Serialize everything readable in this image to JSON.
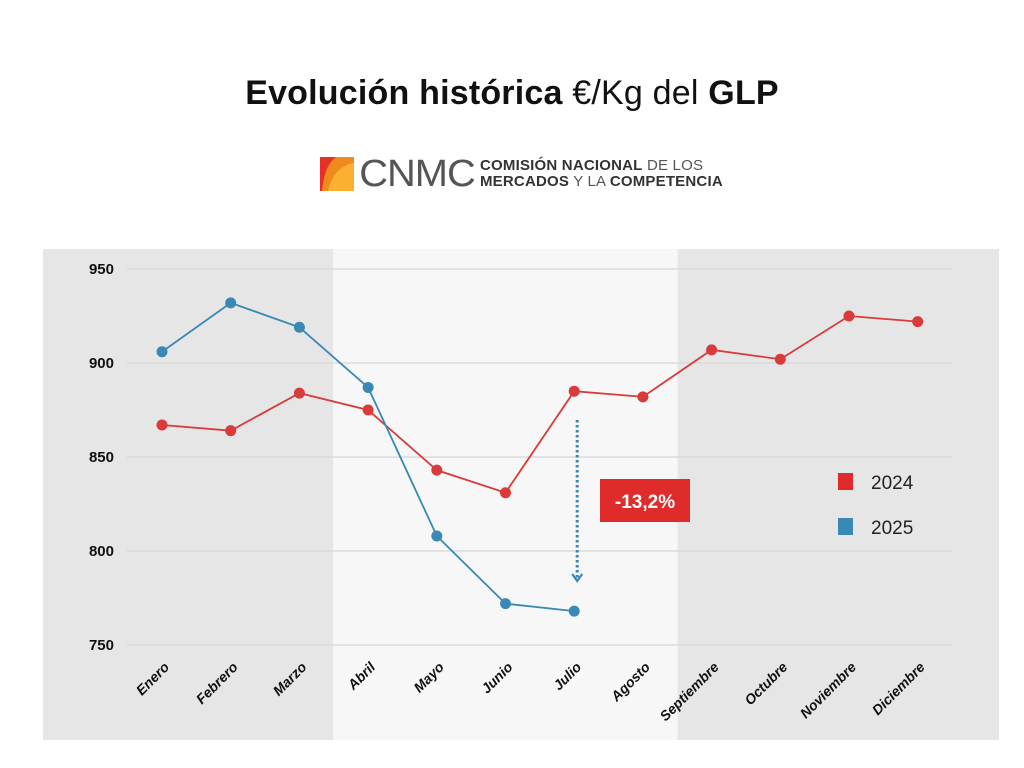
{
  "header": {
    "title_bold_1": "Evolución histórica",
    "title_light": "€/Kg del",
    "title_bold_2": "GLP"
  },
  "logo": {
    "letters": "CNMC",
    "line1_bold": "COMISIÓN NACIONAL",
    "line1_light": "DE LOS",
    "line2_bold": "MERCADOS",
    "line2_light": "Y LA",
    "line2_bold_2": "COMPETENCIA",
    "colors": [
      "#e63027",
      "#f08a1c",
      "#fbb034"
    ]
  },
  "chart_data": {
    "type": "line",
    "title": "Evolución histórica €/Kg del GLP",
    "xlabel": "",
    "ylabel": "",
    "categories": [
      "Enero",
      "Febrero",
      "Marzo",
      "Abril",
      "Mayo",
      "Junio",
      "Julio",
      "Agosto",
      "Septiembre",
      "Octubre",
      "Noviembre",
      "Diciembre"
    ],
    "ylim": [
      750,
      950
    ],
    "yticks": [
      950,
      900,
      850,
      800,
      750
    ],
    "grid": true,
    "legend_position": "right",
    "highlighted_range": [
      "Abril",
      "Septiembre"
    ],
    "series": [
      {
        "name": "2024",
        "color": "#d93a3a",
        "values": [
          867,
          864,
          884,
          875,
          843,
          831,
          885,
          882,
          907,
          902,
          925,
          922
        ]
      },
      {
        "name": "2025",
        "color": "#3a88b5",
        "values": [
          906,
          932,
          919,
          887,
          808,
          772,
          768,
          null,
          null,
          null,
          null,
          null
        ]
      }
    ],
    "legend": [
      {
        "label": "2024",
        "color": "#e02b2b"
      },
      {
        "label": "2025",
        "color": "#3a88b5"
      }
    ],
    "annotations": [
      {
        "text": "-13,2%",
        "type": "badge",
        "color": "#e02b2b",
        "category": "Julio",
        "arrow_from": 870,
        "arrow_to": 785
      }
    ]
  }
}
